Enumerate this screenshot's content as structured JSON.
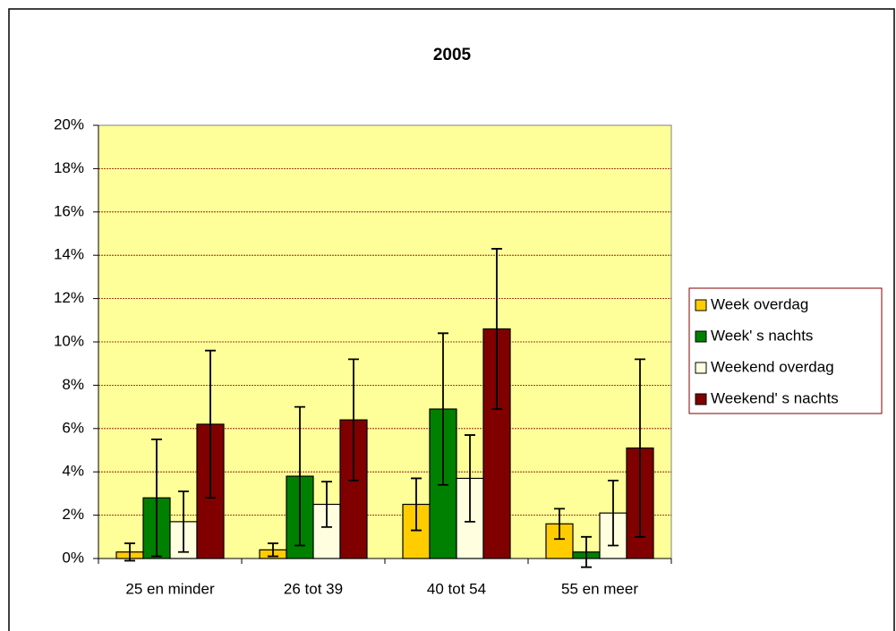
{
  "chart_data": {
    "type": "bar",
    "title": "2005",
    "categories": [
      "25 en minder",
      "26 tot 39",
      "40 tot 54",
      "55 en meer"
    ],
    "series": [
      {
        "name": "Week overdag",
        "color": "#ffcc00",
        "values": [
          0.3,
          0.4,
          2.5,
          1.6
        ],
        "errors": [
          0.4,
          0.3,
          1.2,
          0.7
        ]
      },
      {
        "name": "Week' s nachts",
        "color": "#008000",
        "values": [
          2.8,
          3.8,
          6.9,
          0.3
        ],
        "errors": [
          2.7,
          3.2,
          3.5,
          0.7
        ]
      },
      {
        "name": "Weekend overdag",
        "color": "#ffffe0",
        "values": [
          1.7,
          2.5,
          3.7,
          2.1
        ],
        "errors": [
          1.4,
          1.05,
          2.0,
          1.5
        ]
      },
      {
        "name": "Weekend' s nachts",
        "color": "#800000",
        "values": [
          6.2,
          6.4,
          10.6,
          5.1
        ],
        "errors": [
          3.4,
          2.8,
          3.7,
          4.1
        ]
      }
    ],
    "ylim": [
      0,
      20
    ],
    "yticks": [
      {
        "value": 0,
        "label": "0%"
      },
      {
        "value": 2,
        "label": "2%"
      },
      {
        "value": 4,
        "label": "4%"
      },
      {
        "value": 6,
        "label": "6%"
      },
      {
        "value": 8,
        "label": "8%"
      },
      {
        "value": 10,
        "label": "10%"
      },
      {
        "value": 12,
        "label": "12%"
      },
      {
        "value": 14,
        "label": "14%"
      },
      {
        "value": 16,
        "label": "16%"
      },
      {
        "value": 18,
        "label": "18%"
      },
      {
        "value": 20,
        "label": "20%"
      }
    ],
    "grid": true,
    "legend": "right"
  }
}
